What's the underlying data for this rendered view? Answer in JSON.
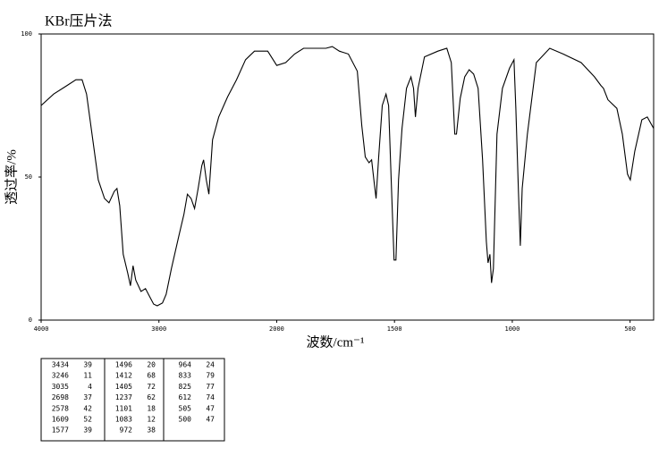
{
  "chart_data": {
    "type": "line",
    "title": "KBr压片法",
    "xlabel": "波数/cm⁻¹",
    "ylabel": "透过率/%",
    "xlim": [
      4000,
      400
    ],
    "x_expand_below": 2000,
    "x_expand_factor": 2,
    "xticks": [
      4000,
      3000,
      2000,
      1500,
      1000,
      500
    ],
    "ylim": [
      0,
      100
    ],
    "yticks": [
      0,
      50,
      100
    ],
    "series": [
      {
        "color": "#000000",
        "x": [
          4000,
          3894,
          3780,
          3705,
          3652,
          3614,
          3568,
          3515,
          3462,
          3424,
          3379,
          3356,
          3333,
          3303,
          3265,
          3242,
          3220,
          3197,
          3152,
          3114,
          3076,
          3045,
          3015,
          2970,
          2939,
          2894,
          2833,
          2788,
          2758,
          2727,
          2697,
          2667,
          2636,
          2621,
          2598,
          2576,
          2545,
          2492,
          2417,
          2341,
          2265,
          2189,
          2076,
          2000,
          1962,
          1924,
          1886,
          1829,
          1791,
          1764,
          1734,
          1696,
          1658,
          1639,
          1624,
          1608,
          1597,
          1586,
          1578,
          1567,
          1552,
          1536,
          1525,
          1514,
          1502,
          1494,
          1483,
          1468,
          1449,
          1430,
          1419,
          1411,
          1400,
          1373,
          1316,
          1278,
          1259,
          1244,
          1237,
          1221,
          1202,
          1183,
          1164,
          1145,
          1126,
          1110,
          1103,
          1095,
          1088,
          1080,
          1065,
          1042,
          1012,
          993,
          985,
          974,
          966,
          958,
          936,
          898,
          841,
          784,
          708,
          651,
          624,
          613,
          594,
          556,
          533,
          511,
          499,
          480,
          450,
          427,
          400
        ],
        "values": [
          75,
          79,
          82,
          84,
          84,
          79,
          65,
          49,
          42.5,
          41,
          45,
          46,
          40,
          23,
          16.5,
          12,
          19,
          14,
          10,
          11,
          8,
          5.6,
          5,
          6,
          9,
          18,
          29,
          37,
          44,
          42.5,
          39,
          46,
          54,
          56,
          49,
          44,
          63,
          71,
          78,
          84,
          91,
          94,
          94,
          89,
          90,
          93,
          95,
          95,
          95,
          95.6,
          94,
          93,
          87,
          68,
          57,
          55,
          56,
          48,
          42.5,
          57,
          75,
          79,
          75,
          49,
          21,
          21,
          49,
          67,
          81,
          85,
          81,
          71,
          81,
          92,
          94,
          95,
          90,
          65,
          65,
          77.5,
          85,
          87.5,
          86,
          81,
          56,
          27.5,
          20,
          23,
          13,
          18,
          65,
          81,
          88,
          91,
          74,
          45,
          26,
          46,
          65,
          90,
          95,
          93,
          90,
          85,
          82,
          81,
          77,
          74,
          65,
          51,
          49,
          59,
          70,
          71,
          67
        ]
      }
    ]
  },
  "peak_table": {
    "rows": [
      [
        3434,
        39
      ],
      [
        3246,
        11
      ],
      [
        3035,
        4
      ],
      [
        2698,
        37
      ],
      [
        2578,
        42
      ],
      [
        1609,
        52
      ],
      [
        1577,
        39
      ],
      [
        1496,
        20
      ],
      [
        1412,
        68
      ],
      [
        1405,
        72
      ],
      [
        1237,
        62
      ],
      [
        1101,
        18
      ],
      [
        1083,
        12
      ],
      [
        972,
        38
      ],
      [
        964,
        24
      ],
      [
        833,
        79
      ],
      [
        825,
        77
      ],
      [
        612,
        74
      ],
      [
        505,
        47
      ],
      [
        500,
        47
      ]
    ]
  }
}
